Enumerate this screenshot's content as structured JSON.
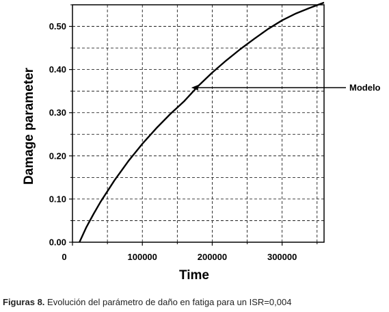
{
  "chart_data": {
    "type": "line",
    "xlabel": "Time",
    "ylabel": "Damage parameter",
    "xlim": [
      0,
      360000
    ],
    "ylim": [
      0,
      0.55
    ],
    "x_ticks": [
      0,
      100000,
      200000,
      300000
    ],
    "x_tick_labels": [
      "0",
      "100000",
      "200000",
      "300000"
    ],
    "y_ticks": [
      0,
      0.1,
      0.2,
      0.3,
      0.4,
      0.5
    ],
    "y_tick_labels": [
      "0.00",
      "0.10",
      "0.20",
      "0.30",
      "0.40",
      "0.50"
    ],
    "grid": true,
    "series": [
      {
        "color": "#000000",
        "x": [
          10000,
          20000,
          30000,
          40000,
          60000,
          80000,
          100000,
          120000,
          140000,
          160000,
          180000,
          200000,
          220000,
          240000,
          260000,
          280000,
          300000,
          320000,
          340000,
          360000
        ],
        "y": [
          0.0,
          0.035,
          0.065,
          0.093,
          0.143,
          0.188,
          0.228,
          0.264,
          0.297,
          0.327,
          0.362,
          0.393,
          0.421,
          0.447,
          0.471,
          0.494,
          0.514,
          0.53,
          0.543,
          0.555
        ]
      }
    ],
    "annotations": [
      {
        "text": "Modelo",
        "arrow_to": [
          170000,
          0.358
        ]
      }
    ]
  },
  "caption": {
    "label": "Figuras 8.",
    "text": " Evolución del parámetro de daño en fatiga para un ISR=0,004"
  }
}
